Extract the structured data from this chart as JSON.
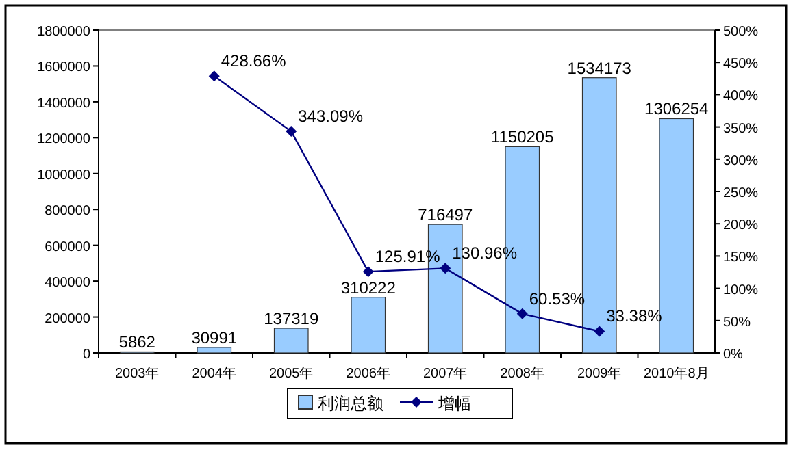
{
  "chart_data": {
    "type": "bar",
    "categories": [
      "2003年",
      "2004年",
      "2005年",
      "2006年",
      "2007年",
      "2008年",
      "2009年",
      "2010年8月"
    ],
    "series": [
      {
        "name": "利润总额",
        "color": "#99ccff",
        "values": [
          5862,
          30991,
          137319,
          310222,
          716497,
          1150205,
          1534173,
          1306254
        ],
        "value_labels": [
          "5862",
          "30991",
          "137319",
          "310222",
          "716497",
          "1150205",
          "1534173",
          "1306254"
        ]
      },
      {
        "name": "增幅",
        "type": "line",
        "axis": "y2",
        "color": "#000080",
        "marker": "diamond",
        "values": [
          null,
          428.66,
          343.09,
          125.91,
          130.96,
          60.53,
          33.38,
          null
        ],
        "value_labels": [
          null,
          "428.66%",
          "343.09%",
          "125.91%",
          "130.96%",
          "60.53%",
          "33.38%",
          null
        ]
      }
    ],
    "ylim": [
      0,
      1800000
    ],
    "yticks": [
      0,
      200000,
      400000,
      600000,
      800000,
      1000000,
      1200000,
      1400000,
      1600000,
      1800000
    ],
    "y2lim": [
      0,
      500
    ],
    "y2ticks": [
      {
        "value": 0,
        "label": "0%"
      },
      {
        "value": 50,
        "label": "50%"
      },
      {
        "value": 100,
        "label": "100%"
      },
      {
        "value": 150,
        "label": "150%"
      },
      {
        "value": 200,
        "label": "200%"
      },
      {
        "value": 250,
        "label": "250%"
      },
      {
        "value": 300,
        "label": "300%"
      },
      {
        "value": 350,
        "label": "350%"
      },
      {
        "value": 400,
        "label": "400%"
      },
      {
        "value": 450,
        "label": "450%"
      },
      {
        "value": 500,
        "label": "500%"
      }
    ],
    "grid": false,
    "legend": "bottom"
  }
}
